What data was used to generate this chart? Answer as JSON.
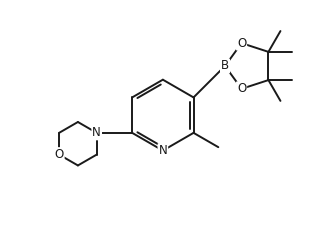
{
  "bg_color": "#ffffff",
  "line_color": "#1a1a1a",
  "line_width": 1.4,
  "font_size": 8.5,
  "xlim": [
    -2.5,
    3.0
  ],
  "ylim": [
    -2.0,
    2.0
  ],
  "figsize": [
    3.2,
    2.36
  ],
  "dpi": 100
}
